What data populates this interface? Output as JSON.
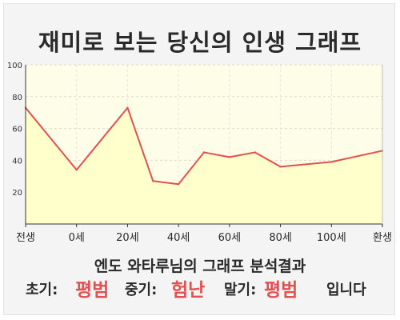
{
  "title": "재미로 보는 당신의 인생 그래프",
  "colors": {
    "line": "#e2514f",
    "area": "#ffffcc",
    "plot_bg": "#fdfde8",
    "highlight": "#e2514f"
  },
  "chart_data": {
    "type": "area",
    "title": "재미로 보는 당신의 인생 그래프",
    "xlabel": "",
    "ylabel": "",
    "x_tick_labels": [
      "전생",
      "0세",
      "20세",
      "40세",
      "60세",
      "80세",
      "100세",
      "환생"
    ],
    "y_ticks": [
      20,
      40,
      60,
      80,
      100
    ],
    "ylim": [
      0,
      100
    ],
    "grid": true,
    "points": [
      {
        "x": "전생",
        "y": 73
      },
      {
        "x": "0세",
        "y": 34
      },
      {
        "x": "20세",
        "y": 73
      },
      {
        "x": "30세",
        "y": 27
      },
      {
        "x": "40세",
        "y": 25
      },
      {
        "x": "50세",
        "y": 45
      },
      {
        "x": "60세",
        "y": 42
      },
      {
        "x": "70세",
        "y": 45
      },
      {
        "x": "80세",
        "y": 36
      },
      {
        "x": "100세",
        "y": 39
      },
      {
        "x": "환생",
        "y": 46
      }
    ]
  },
  "result": {
    "heading": "엔도 와타루님의 그래프 분석결과",
    "early_label": "초기:",
    "early_value": "평범",
    "middle_label": "중기:",
    "middle_value": "험난",
    "late_label": "말기:",
    "late_value": "평범",
    "ending": "입니다"
  }
}
